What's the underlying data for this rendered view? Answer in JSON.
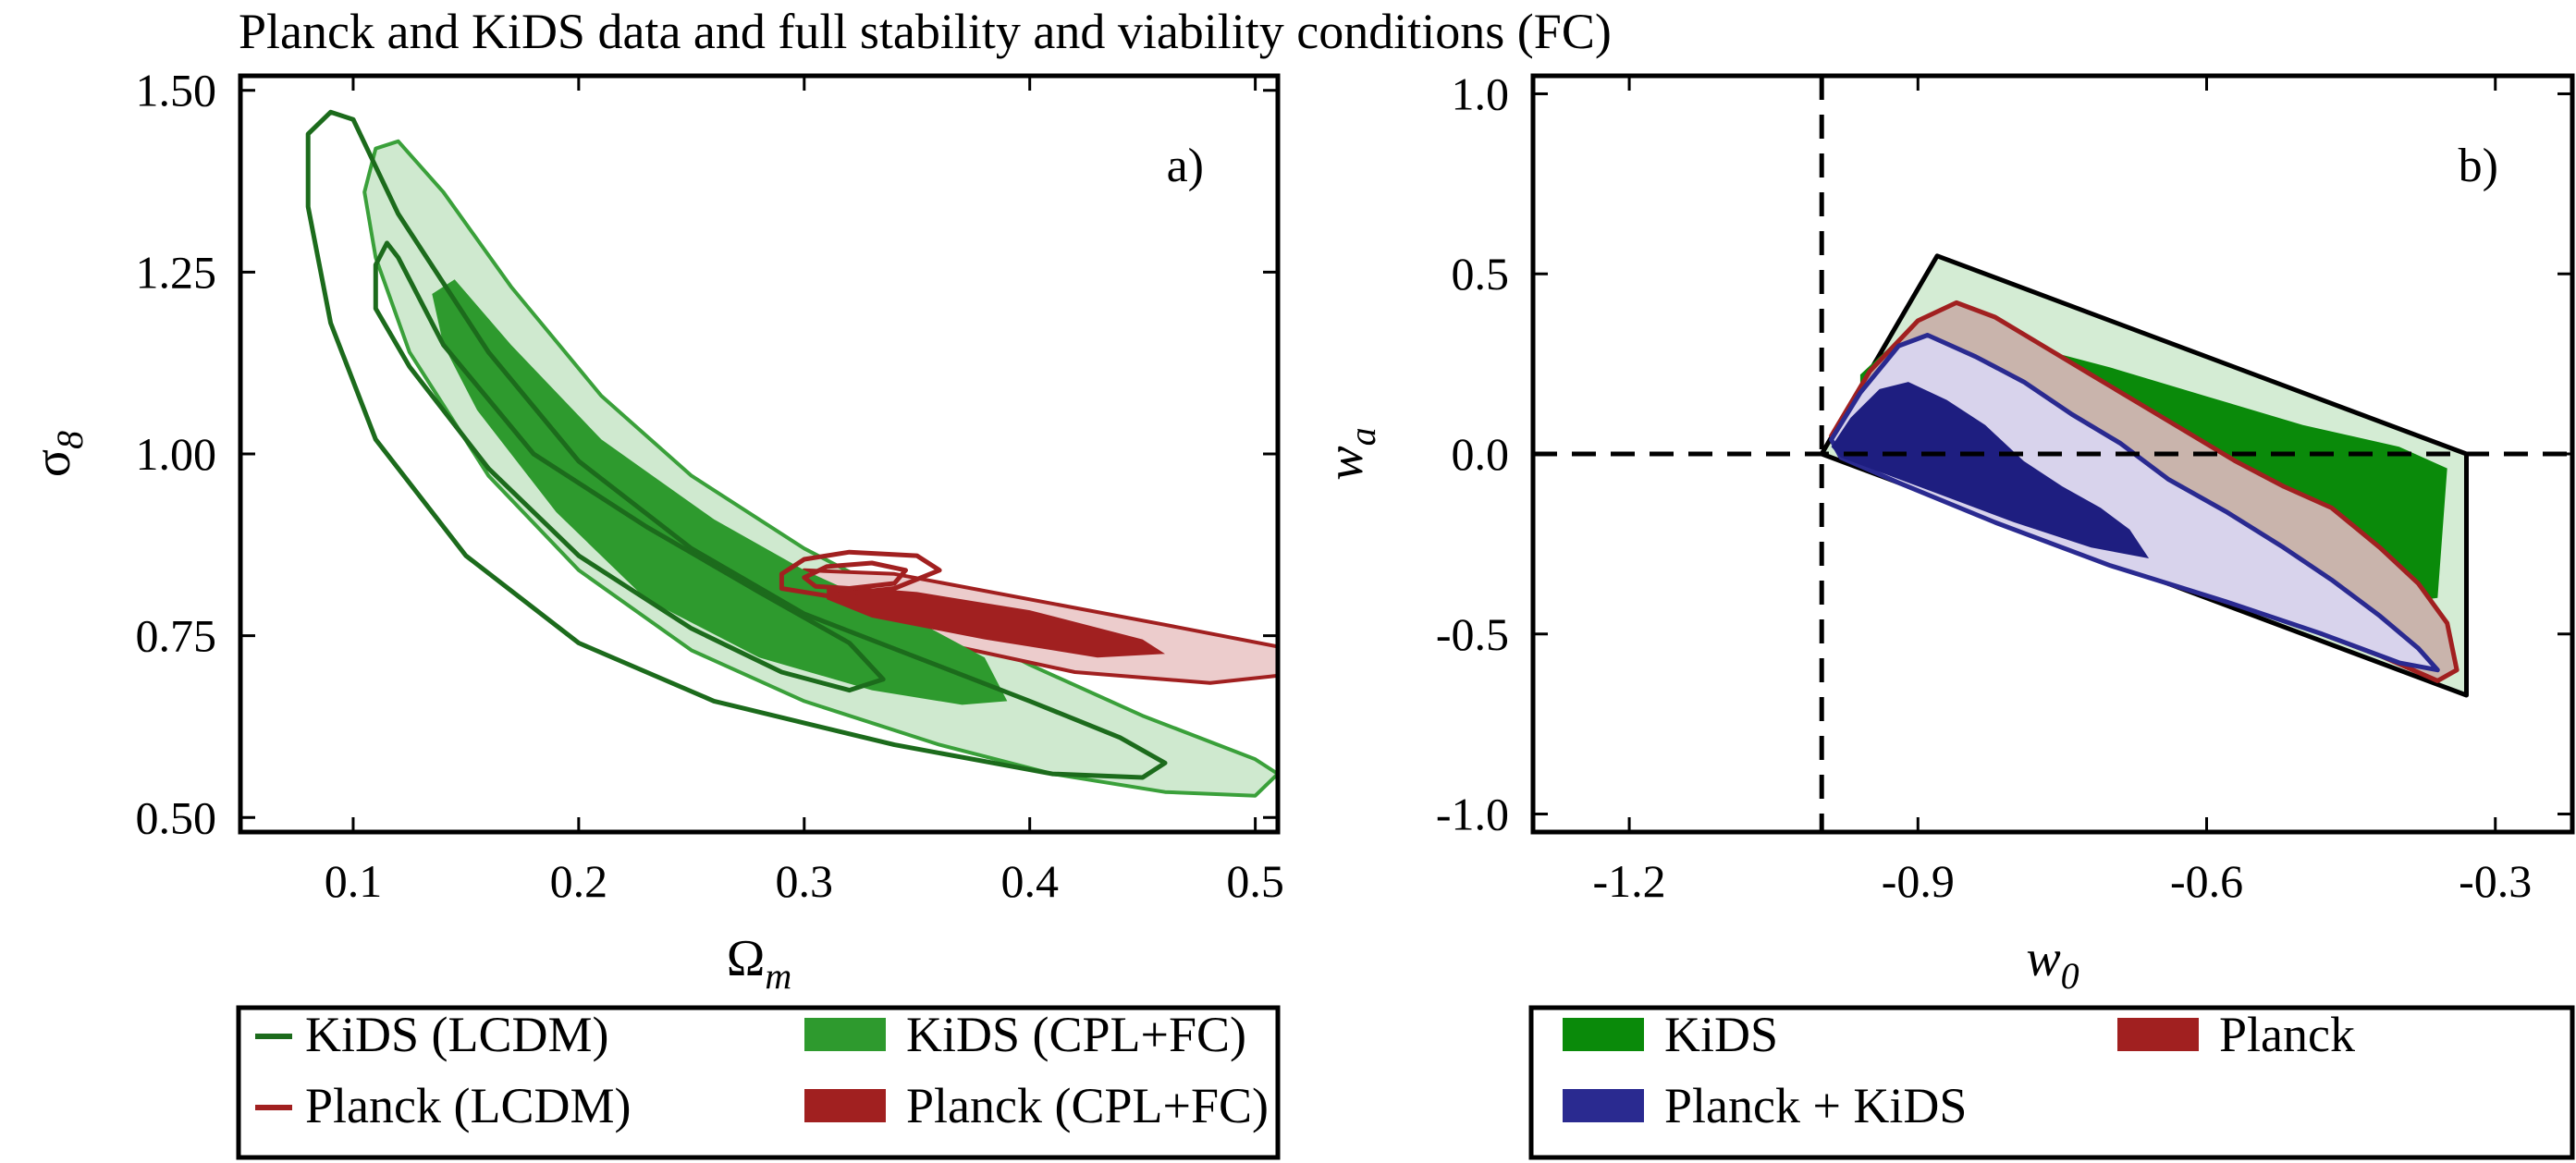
{
  "title": "Planck and KiDS data and full stability and viability conditions (FC)",
  "colors": {
    "kids_dark": "#1c6b1c",
    "kids_fill_inner": "#2e9a2e",
    "kids_fill_outer": "#cfe9cf",
    "kids_fill_outer_line": "#3aa03a",
    "kids_b": "#0a8a0a",
    "planck": "#a12020",
    "planck_fill_outer": "#eccccc",
    "planck_kids": "#2a2a90",
    "planck_kids_light": "#d8d3ec"
  },
  "chart_data": [
    {
      "type": "contour",
      "panel_label": "a)",
      "xlabel_symbol": "Ω",
      "xlabel_sub": "m",
      "ylabel_symbol": "σ",
      "ylabel_sub": "8",
      "xlim": [
        0.05,
        0.51
      ],
      "ylim": [
        0.48,
        1.52
      ],
      "xticks": [
        0.1,
        0.2,
        0.3,
        0.4,
        0.5
      ],
      "xtick_labels": [
        "0.1",
        "0.2",
        "0.3",
        "0.4",
        "0.5"
      ],
      "yticks": [
        0.5,
        0.75,
        1.0,
        1.25,
        1.5
      ],
      "ytick_labels": [
        "0.50",
        "0.75",
        "1.00",
        "1.25",
        "1.50"
      ],
      "legend_position": "below",
      "legend": [
        {
          "label": "KiDS (LCDM)",
          "style": "line",
          "color": "#1c6b1c"
        },
        {
          "label": "KiDS (CPL+FC)",
          "style": "patch",
          "color": "#2e9a2e"
        },
        {
          "label": "Planck (LCDM)",
          "style": "line",
          "color": "#a12020"
        },
        {
          "label": "Planck (CPL+FC)",
          "style": "patch",
          "color": "#a12020"
        }
      ],
      "contours": [
        {
          "series": "KiDS (CPL+FC)",
          "level": "outer",
          "fill": "#cfe9cf",
          "stroke": "#3aa03a",
          "stroke_width": 4,
          "points": [
            [
              0.11,
              1.42
            ],
            [
              0.12,
              1.43
            ],
            [
              0.14,
              1.36
            ],
            [
              0.17,
              1.23
            ],
            [
              0.21,
              1.08
            ],
            [
              0.25,
              0.97
            ],
            [
              0.3,
              0.87
            ],
            [
              0.35,
              0.79
            ],
            [
              0.4,
              0.71
            ],
            [
              0.45,
              0.64
            ],
            [
              0.5,
              0.58
            ],
            [
              0.51,
              0.56
            ],
            [
              0.5,
              0.53
            ],
            [
              0.46,
              0.535
            ],
            [
              0.41,
              0.56
            ],
            [
              0.36,
              0.6
            ],
            [
              0.3,
              0.66
            ],
            [
              0.25,
              0.73
            ],
            [
              0.2,
              0.84
            ],
            [
              0.16,
              0.97
            ],
            [
              0.125,
              1.14
            ],
            [
              0.11,
              1.27
            ],
            [
              0.105,
              1.36
            ]
          ]
        },
        {
          "series": "Planck (CPL+FC)",
          "level": "outer",
          "fill": "#eccccc",
          "stroke": "#a12020",
          "stroke_width": 4,
          "points": [
            [
              0.3,
              0.84
            ],
            [
              0.34,
              0.835
            ],
            [
              0.4,
              0.8
            ],
            [
              0.46,
              0.765
            ],
            [
              0.51,
              0.735
            ],
            [
              0.51,
              0.695
            ],
            [
              0.48,
              0.685
            ],
            [
              0.42,
              0.7
            ],
            [
              0.36,
              0.74
            ],
            [
              0.32,
              0.77
            ],
            [
              0.3,
              0.8
            ]
          ]
        },
        {
          "series": "KiDS (CPL+FC)",
          "level": "inner",
          "fill": "#2e9a2e",
          "stroke": "none",
          "stroke_width": 0,
          "points": [
            [
              0.135,
              1.22
            ],
            [
              0.145,
              1.24
            ],
            [
              0.17,
              1.15
            ],
            [
              0.21,
              1.02
            ],
            [
              0.26,
              0.91
            ],
            [
              0.3,
              0.84
            ],
            [
              0.35,
              0.77
            ],
            [
              0.38,
              0.72
            ],
            [
              0.39,
              0.66
            ],
            [
              0.37,
              0.655
            ],
            [
              0.33,
              0.675
            ],
            [
              0.28,
              0.72
            ],
            [
              0.23,
              0.8
            ],
            [
              0.19,
              0.92
            ],
            [
              0.155,
              1.06
            ],
            [
              0.14,
              1.15
            ]
          ]
        },
        {
          "series": "Planck (CPL+FC)",
          "level": "inner",
          "fill": "#a12020",
          "stroke": "none",
          "stroke_width": 0,
          "points": [
            [
              0.31,
              0.82
            ],
            [
              0.35,
              0.81
            ],
            [
              0.4,
              0.785
            ],
            [
              0.45,
              0.745
            ],
            [
              0.46,
              0.725
            ],
            [
              0.43,
              0.72
            ],
            [
              0.38,
              0.745
            ],
            [
              0.33,
              0.775
            ],
            [
              0.31,
              0.8
            ]
          ]
        },
        {
          "series": "KiDS (LCDM)",
          "level": "outer",
          "fill": "none",
          "stroke": "#1c6b1c",
          "stroke_width": 5,
          "points": [
            [
              0.08,
              1.44
            ],
            [
              0.09,
              1.47
            ],
            [
              0.1,
              1.46
            ],
            [
              0.12,
              1.33
            ],
            [
              0.16,
              1.14
            ],
            [
              0.2,
              0.99
            ],
            [
              0.25,
              0.87
            ],
            [
              0.3,
              0.78
            ],
            [
              0.35,
              0.72
            ],
            [
              0.4,
              0.66
            ],
            [
              0.44,
              0.61
            ],
            [
              0.46,
              0.575
            ],
            [
              0.45,
              0.555
            ],
            [
              0.41,
              0.56
            ],
            [
              0.34,
              0.6
            ],
            [
              0.26,
              0.66
            ],
            [
              0.2,
              0.74
            ],
            [
              0.15,
              0.86
            ],
            [
              0.11,
              1.02
            ],
            [
              0.09,
              1.18
            ],
            [
              0.08,
              1.34
            ]
          ]
        },
        {
          "series": "KiDS (LCDM)",
          "level": "inner",
          "fill": "none",
          "stroke": "#1c6b1c",
          "stroke_width": 5,
          "points": [
            [
              0.11,
              1.26
            ],
            [
              0.115,
              1.29
            ],
            [
              0.12,
              1.27
            ],
            [
              0.14,
              1.15
            ],
            [
              0.18,
              1.0
            ],
            [
              0.23,
              0.9
            ],
            [
              0.28,
              0.81
            ],
            [
              0.32,
              0.74
            ],
            [
              0.335,
              0.69
            ],
            [
              0.32,
              0.675
            ],
            [
              0.29,
              0.7
            ],
            [
              0.25,
              0.76
            ],
            [
              0.2,
              0.86
            ],
            [
              0.16,
              0.98
            ],
            [
              0.125,
              1.12
            ],
            [
              0.11,
              1.2
            ]
          ]
        },
        {
          "series": "Planck (LCDM)",
          "level": "outer",
          "fill": "none",
          "stroke": "#a12020",
          "stroke_width": 5,
          "points": [
            [
              0.29,
              0.835
            ],
            [
              0.3,
              0.855
            ],
            [
              0.32,
              0.865
            ],
            [
              0.35,
              0.86
            ],
            [
              0.36,
              0.84
            ],
            [
              0.34,
              0.815
            ],
            [
              0.31,
              0.805
            ],
            [
              0.29,
              0.815
            ]
          ]
        },
        {
          "series": "Planck (LCDM)",
          "level": "inner",
          "fill": "none",
          "stroke": "#a12020",
          "stroke_width": 5,
          "points": [
            [
              0.3,
              0.83
            ],
            [
              0.31,
              0.845
            ],
            [
              0.33,
              0.85
            ],
            [
              0.345,
              0.84
            ],
            [
              0.34,
              0.822
            ],
            [
              0.32,
              0.815
            ],
            [
              0.305,
              0.818
            ]
          ]
        }
      ]
    },
    {
      "type": "contour",
      "panel_label": "b)",
      "xlabel_symbol": "w",
      "xlabel_sub": "0",
      "ylabel_symbol": "w",
      "ylabel_sub": "a",
      "xlim": [
        -1.3,
        -0.22
      ],
      "ylim": [
        -1.05,
        1.05
      ],
      "xticks": [
        -1.2,
        -0.9,
        -0.6,
        -0.3
      ],
      "xtick_labels": [
        "-1.2",
        "-0.9",
        "-0.6",
        "-0.3"
      ],
      "yticks": [
        -1.0,
        -0.5,
        0.0,
        0.5,
        1.0
      ],
      "ytick_labels": [
        "-1.0",
        "-0.5",
        "0.0",
        "0.5",
        "1.0"
      ],
      "reference_lines": {
        "x": -1.0,
        "y": 0.0
      },
      "legend_position": "below",
      "legend": [
        {
          "label": "KiDS",
          "style": "patch",
          "color": "#0a8a0a"
        },
        {
          "label": "Planck",
          "style": "patch",
          "color": "#a12020"
        },
        {
          "label": "Planck + KiDS",
          "style": "patch",
          "color": "#2a2a90"
        }
      ],
      "contours": [
        {
          "series": "allowed region",
          "level": "boundary",
          "fill": "#d4ecd4",
          "stroke": "#000000",
          "stroke_width": 5,
          "points": [
            [
              -1.0,
              0.0
            ],
            [
              -0.88,
              0.55
            ],
            [
              -0.33,
              0.0
            ],
            [
              -0.33,
              -0.67
            ],
            [
              -1.0,
              0.0
            ]
          ]
        },
        {
          "series": "KiDS",
          "level": "inner",
          "fill": "#0a8a0a",
          "stroke": "none",
          "stroke_width": 0,
          "points": [
            [
              -0.96,
              0.22
            ],
            [
              -0.9,
              0.37
            ],
            [
              -0.86,
              0.41
            ],
            [
              -0.8,
              0.31
            ],
            [
              -0.7,
              0.24
            ],
            [
              -0.6,
              0.16
            ],
            [
              -0.5,
              0.08
            ],
            [
              -0.4,
              0.02
            ],
            [
              -0.35,
              -0.04
            ],
            [
              -0.36,
              -0.4
            ],
            [
              -0.42,
              -0.42
            ],
            [
              -0.5,
              -0.36
            ],
            [
              -0.6,
              -0.26
            ],
            [
              -0.7,
              -0.14
            ],
            [
              -0.8,
              -0.02
            ],
            [
              -0.9,
              0.1
            ],
            [
              -0.96,
              0.16
            ]
          ]
        },
        {
          "series": "Planck",
          "level": "outer",
          "fill": "#c9b4ac",
          "stroke": "#a12020",
          "stroke_width": 5,
          "points": [
            [
              -0.99,
              0.05
            ],
            [
              -0.95,
              0.23
            ],
            [
              -0.9,
              0.37
            ],
            [
              -0.86,
              0.42
            ],
            [
              -0.82,
              0.38
            ],
            [
              -0.77,
              0.3
            ],
            [
              -0.72,
              0.22
            ],
            [
              -0.67,
              0.14
            ],
            [
              -0.62,
              0.06
            ],
            [
              -0.57,
              -0.02
            ],
            [
              -0.52,
              -0.09
            ],
            [
              -0.47,
              -0.15
            ],
            [
              -0.42,
              -0.26
            ],
            [
              -0.38,
              -0.36
            ],
            [
              -0.35,
              -0.47
            ],
            [
              -0.34,
              -0.6
            ],
            [
              -0.36,
              -0.63
            ],
            [
              -0.42,
              -0.56
            ],
            [
              -0.52,
              -0.46
            ],
            [
              -0.64,
              -0.36
            ],
            [
              -0.76,
              -0.24
            ],
            [
              -0.88,
              -0.12
            ],
            [
              -0.97,
              -0.02
            ]
          ]
        },
        {
          "series": "Planck + KiDS",
          "level": "outer",
          "fill": "#d8d3ec",
          "stroke": "#2a2a90",
          "stroke_width": 5,
          "points": [
            [
              -0.99,
              0.04
            ],
            [
              -0.96,
              0.17
            ],
            [
              -0.92,
              0.3
            ],
            [
              -0.89,
              0.33
            ],
            [
              -0.84,
              0.27
            ],
            [
              -0.79,
              0.2
            ],
            [
              -0.74,
              0.11
            ],
            [
              -0.69,
              0.03
            ],
            [
              -0.64,
              -0.07
            ],
            [
              -0.58,
              -0.16
            ],
            [
              -0.52,
              -0.26
            ],
            [
              -0.47,
              -0.35
            ],
            [
              -0.42,
              -0.45
            ],
            [
              -0.38,
              -0.54
            ],
            [
              -0.36,
              -0.6
            ],
            [
              -0.4,
              -0.58
            ],
            [
              -0.48,
              -0.5
            ],
            [
              -0.58,
              -0.41
            ],
            [
              -0.7,
              -0.31
            ],
            [
              -0.82,
              -0.19
            ],
            [
              -0.92,
              -0.08
            ],
            [
              -0.98,
              -0.01
            ]
          ]
        },
        {
          "series": "Planck + KiDS",
          "level": "inner",
          "fill": "#1e1e80",
          "stroke": "none",
          "stroke_width": 0,
          "points": [
            [
              -0.99,
              0.02
            ],
            [
              -0.97,
              0.1
            ],
            [
              -0.94,
              0.18
            ],
            [
              -0.91,
              0.2
            ],
            [
              -0.87,
              0.15
            ],
            [
              -0.83,
              0.08
            ],
            [
              -0.79,
              -0.02
            ],
            [
              -0.75,
              -0.09
            ],
            [
              -0.71,
              -0.15
            ],
            [
              -0.68,
              -0.21
            ],
            [
              -0.66,
              -0.29
            ],
            [
              -0.72,
              -0.26
            ],
            [
              -0.8,
              -0.19
            ],
            [
              -0.88,
              -0.11
            ],
            [
              -0.94,
              -0.05
            ],
            [
              -0.98,
              -0.01
            ]
          ]
        }
      ]
    }
  ]
}
